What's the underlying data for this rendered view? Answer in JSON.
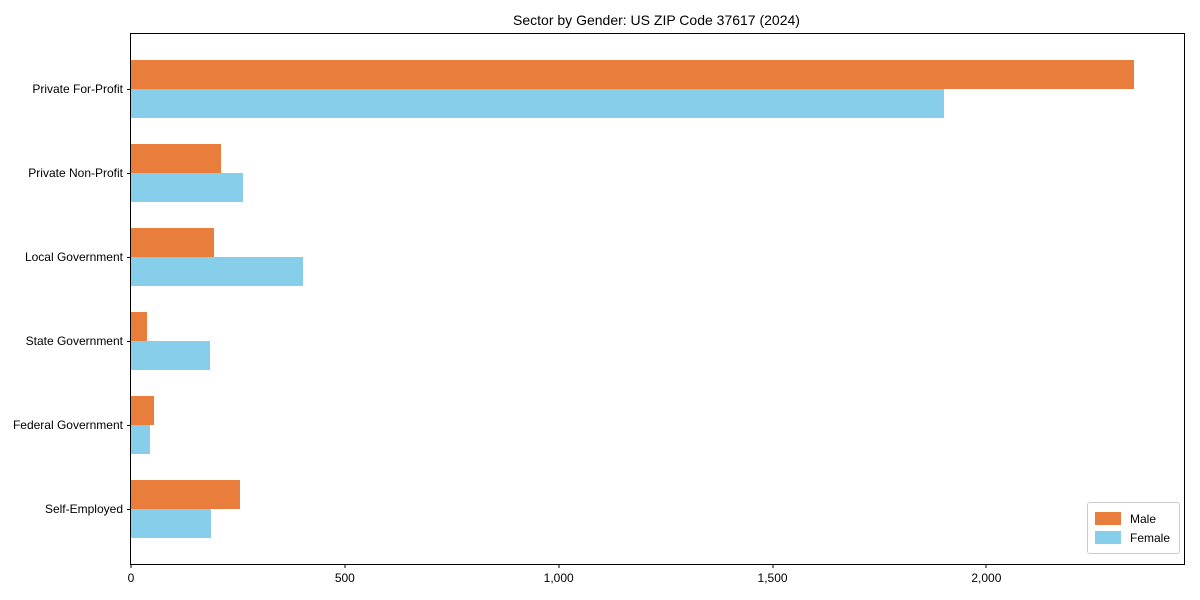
{
  "chart_data": {
    "type": "bar",
    "orientation": "horizontal",
    "title": "Sector by Gender: US ZIP Code 37617 (2024)",
    "categories": [
      "Private For-Profit",
      "Private Non-Profit",
      "Local Government",
      "State Government",
      "Federal Government",
      "Self-Employed"
    ],
    "series": [
      {
        "name": "Male",
        "color": "#e87d3c",
        "values": [
          2345,
          210,
          195,
          38,
          54,
          256
        ]
      },
      {
        "name": "Female",
        "color": "#87ceeb",
        "values": [
          1900,
          262,
          402,
          185,
          44,
          186
        ]
      }
    ],
    "xlabel": "",
    "ylabel": "",
    "xlim": [
      0,
      2462
    ],
    "xticks": {
      "values": [
        0,
        500,
        1000,
        1500,
        2000
      ],
      "labels": [
        "0",
        "500",
        "1,000",
        "1,500",
        "2,000"
      ]
    },
    "grid": false,
    "legend": {
      "position": "lower right"
    }
  },
  "colors": {
    "background": "#ffffff",
    "axis": "#000000",
    "legend_border": "#cccccc"
  }
}
